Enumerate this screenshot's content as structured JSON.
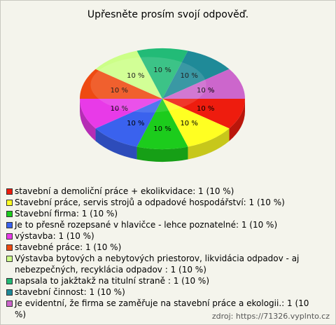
{
  "chart_data": {
    "type": "pie3d",
    "title": "Upřesněte prosím svojí odpověď.",
    "categories": [
      "stavební a demoliční práce + ekolikvidace: 1 (10 %)",
      "Stavební práce, servis strojů a odpadové hospodářství: 1 (10 %)",
      "Stavební firma: 1 (10 %)",
      "Je to přesně rozepsané v hlavičce - lehce poznatelné: 1 (10 %)",
      "výstavba: 1 (10 %)",
      "stavebné práce: 1 (10 %)",
      "Výstavba bytových a nebytových priestorov, likvidácia odpadov - aj nebezpečných, recyklácia odpadov : 1 (10 %)",
      "napsala to jakžtakž na titulní straně : 1 (10 %)",
      "stavební činnost: 1 (10 %)",
      "Je evidentní, že firma se zaměřuje na stavební práce a ekologii.: 1 (10 %)"
    ],
    "values": [
      10,
      10,
      10,
      10,
      10,
      10,
      10,
      10,
      10,
      10
    ],
    "value_labels": [
      "10 %",
      "10 %",
      "10 %",
      "10 %",
      "10 %",
      "10 %",
      "10 %",
      "10 %",
      "10 %",
      "10 %"
    ],
    "colors": [
      "#ee1c0e",
      "#ffff22",
      "#1ccc1c",
      "#3a62ee",
      "#e83ae8",
      "#ee4a12",
      "#ccff88",
      "#22bb77",
      "#1f8a98",
      "#cc66cc"
    ],
    "source": "zdroj: https://71326.vyplnto.cz"
  }
}
